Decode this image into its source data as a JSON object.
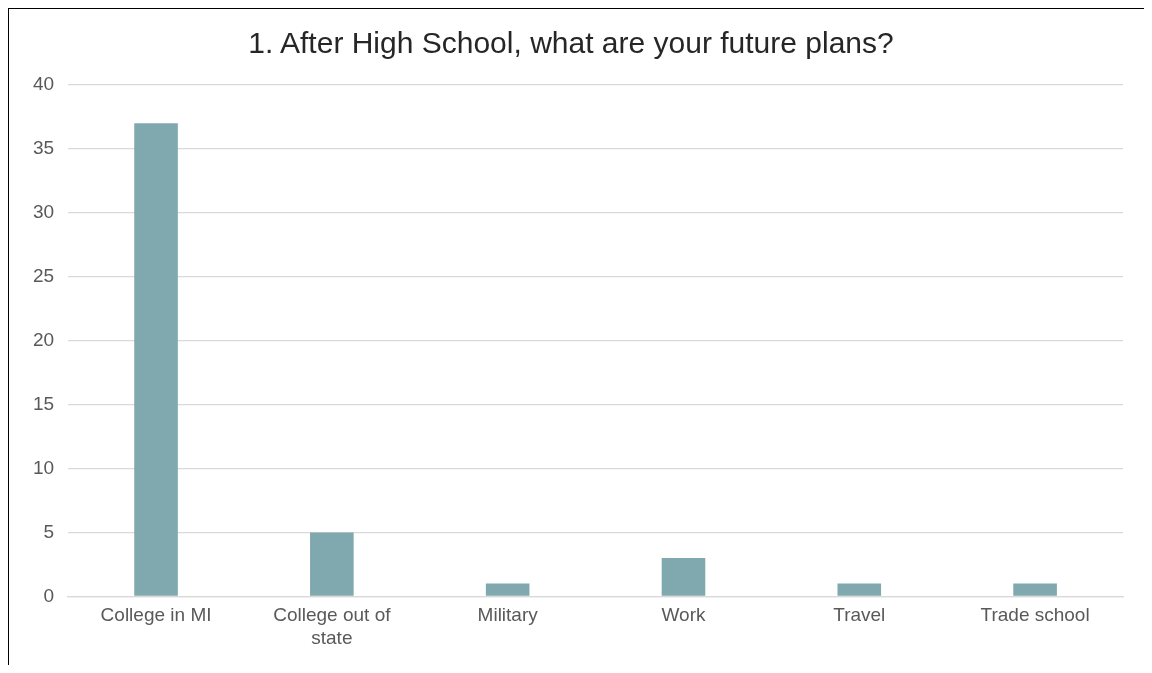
{
  "chart_data": {
    "type": "bar",
    "title": "1. After High School, what are your future plans?",
    "categories": [
      "College in MI",
      "College out of state",
      "Military",
      "Work",
      "Travel",
      "Trade school"
    ],
    "values": [
      37,
      5,
      1,
      3,
      1,
      1
    ],
    "color": "#7fa9ae",
    "ylim": [
      0,
      40
    ],
    "yticks": [
      0,
      5,
      10,
      15,
      20,
      25,
      30,
      35,
      40
    ],
    "grid": "y",
    "legend": false
  }
}
